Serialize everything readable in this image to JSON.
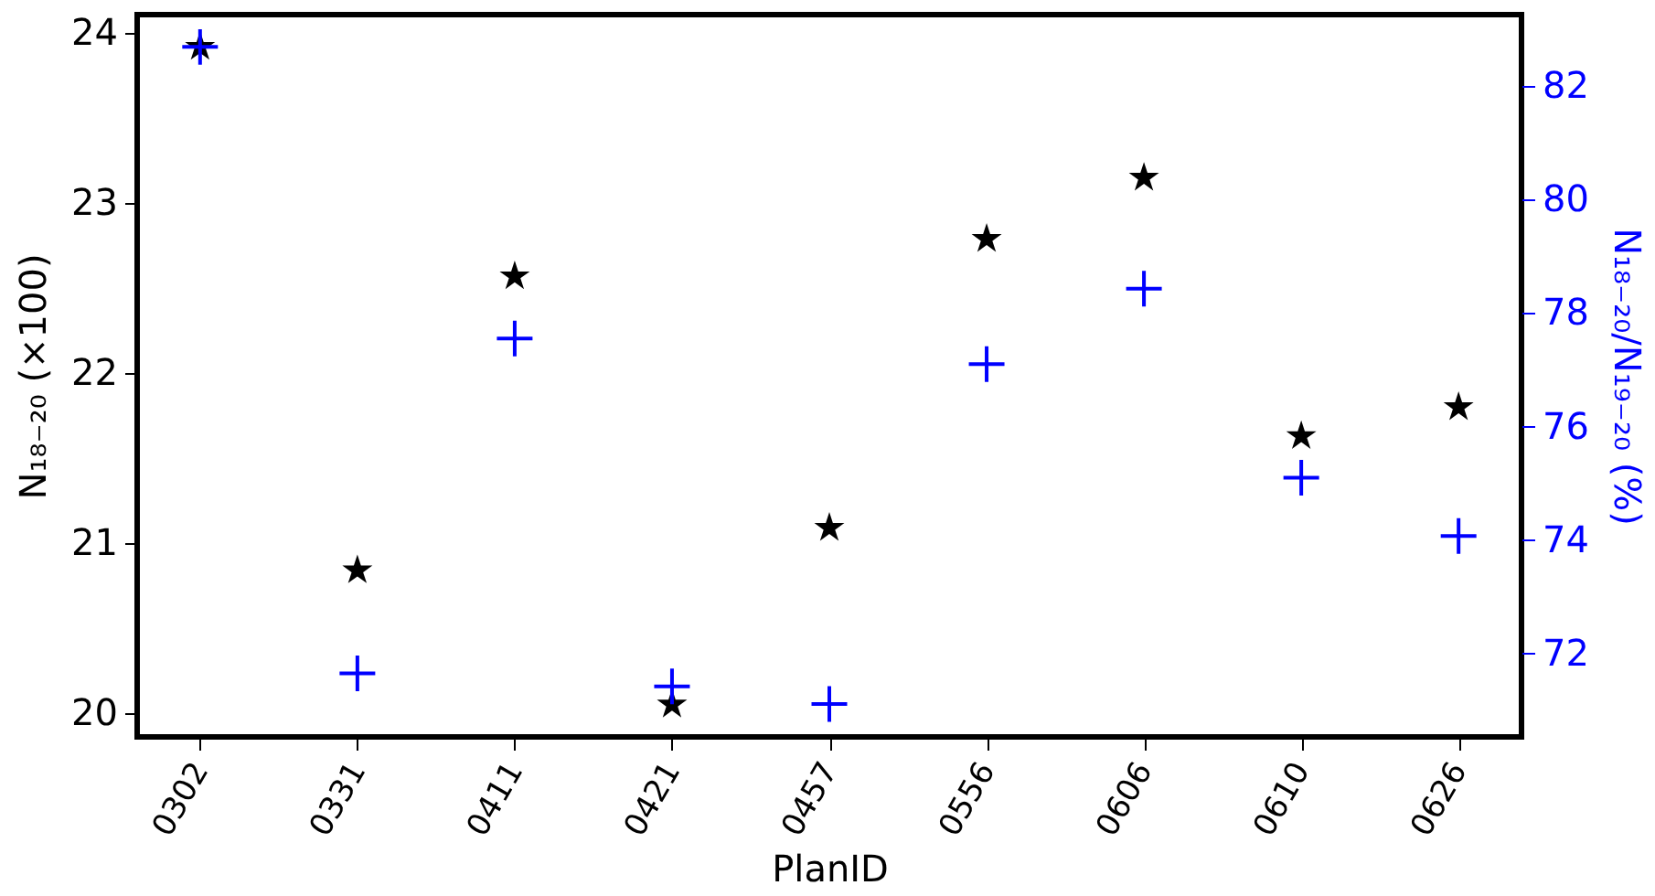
{
  "chart_data": {
    "type": "scatter",
    "xlabel": "PlanID",
    "ylabel": "N₁₈₋₂₀ (×100)",
    "y2label": "N₁₈₋₂₀/N₁₉₋₂₀ (%)",
    "categories": [
      "0302",
      "0331",
      "0411",
      "0421",
      "0457",
      "0556",
      "0606",
      "0610",
      "0626"
    ],
    "series": [
      {
        "color": "#000000",
        "marker": "star",
        "values": [
          23.92,
          20.84,
          22.57,
          20.05,
          21.09,
          22.79,
          23.15,
          21.63,
          21.8
        ]
      },
      {
        "color": "#0000ff",
        "marker": "cross",
        "axis": "y2",
        "values": [
          82.69,
          71.65,
          77.55,
          71.42,
          71.11,
          77.1,
          78.43,
          75.1,
          74.07
        ]
      }
    ],
    "ylim": [
      19.86,
      24.11
    ],
    "yticks": [
      20,
      21,
      22,
      23,
      24
    ],
    "y2lim": [
      70.53,
      83.26
    ],
    "y2ticks": [
      72,
      74,
      76,
      78,
      80,
      82
    ],
    "grid": false
  }
}
